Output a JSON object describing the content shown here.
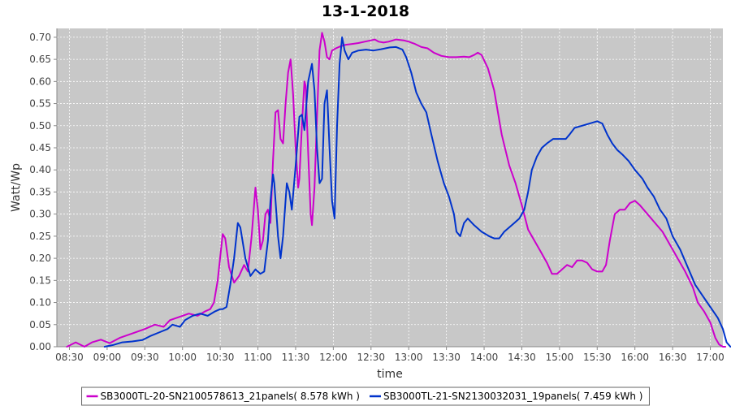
{
  "chart_data": {
    "type": "line",
    "title": "13-1-2018",
    "xlabel": "time",
    "ylabel": "Watt/Wp",
    "xlim": [
      "08:20",
      "17:10"
    ],
    "ylim": [
      0,
      0.72
    ],
    "x_ticks": [
      "08:30",
      "09:00",
      "09:30",
      "10:00",
      "10:30",
      "11:00",
      "11:30",
      "12:00",
      "12:30",
      "13:00",
      "13:30",
      "14:00",
      "14:30",
      "15:00",
      "15:30",
      "16:00",
      "16:30",
      "17:00"
    ],
    "y_ticks": [
      "0.00",
      "0.05",
      "0.10",
      "0.15",
      "0.20",
      "0.25",
      "0.30",
      "0.35",
      "0.40",
      "0.45",
      "0.50",
      "0.55",
      "0.60",
      "0.65",
      "0.70"
    ],
    "grid": true,
    "legend_position": "bottom",
    "background_color": "#c8c8c8",
    "series": [
      {
        "name": "SB3000TL-20-SN2100578613_21panels( 8.578 kWh )",
        "color": "#cc00cc",
        "points": [
          [
            "08:28",
            0.0
          ],
          [
            "08:35",
            0.01
          ],
          [
            "08:42",
            0.0
          ],
          [
            "08:48",
            0.01
          ],
          [
            "08:55",
            0.016
          ],
          [
            "09:02",
            0.008
          ],
          [
            "09:10",
            0.02
          ],
          [
            "09:20",
            0.03
          ],
          [
            "09:30",
            0.04
          ],
          [
            "09:38",
            0.05
          ],
          [
            "09:45",
            0.045
          ],
          [
            "09:50",
            0.06
          ],
          [
            "10:00",
            0.07
          ],
          [
            "10:05",
            0.075
          ],
          [
            "10:12",
            0.07
          ],
          [
            "10:18",
            0.08
          ],
          [
            "10:22",
            0.085
          ],
          [
            "10:25",
            0.1
          ],
          [
            "10:28",
            0.15
          ],
          [
            "10:32",
            0.255
          ],
          [
            "10:34",
            0.245
          ],
          [
            "10:37",
            0.18
          ],
          [
            "10:41",
            0.145
          ],
          [
            "10:45",
            0.16
          ],
          [
            "10:49",
            0.185
          ],
          [
            "10:52",
            0.17
          ],
          [
            "10:55",
            0.25
          ],
          [
            "10:58",
            0.36
          ],
          [
            "11:00",
            0.31
          ],
          [
            "11:02",
            0.22
          ],
          [
            "11:04",
            0.24
          ],
          [
            "11:06",
            0.3
          ],
          [
            "11:08",
            0.31
          ],
          [
            "11:10",
            0.28
          ],
          [
            "11:12",
            0.42
          ],
          [
            "11:14",
            0.53
          ],
          [
            "11:16",
            0.535
          ],
          [
            "11:18",
            0.47
          ],
          [
            "11:20",
            0.46
          ],
          [
            "11:22",
            0.55
          ],
          [
            "11:24",
            0.62
          ],
          [
            "11:26",
            0.65
          ],
          [
            "11:28",
            0.57
          ],
          [
            "11:30",
            0.45
          ],
          [
            "11:32",
            0.36
          ],
          [
            "11:33",
            0.38
          ],
          [
            "11:35",
            0.5
          ],
          [
            "11:37",
            0.6
          ],
          [
            "11:38",
            0.59
          ],
          [
            "11:40",
            0.44
          ],
          [
            "11:42",
            0.3
          ],
          [
            "11:43",
            0.275
          ],
          [
            "11:45",
            0.36
          ],
          [
            "11:47",
            0.52
          ],
          [
            "11:49",
            0.67
          ],
          [
            "11:51",
            0.71
          ],
          [
            "11:53",
            0.69
          ],
          [
            "11:55",
            0.655
          ],
          [
            "11:57",
            0.65
          ],
          [
            "11:59",
            0.67
          ],
          [
            "12:02",
            0.675
          ],
          [
            "12:06",
            0.68
          ],
          [
            "12:10",
            0.683
          ],
          [
            "12:15",
            0.685
          ],
          [
            "12:20",
            0.687
          ],
          [
            "12:25",
            0.69
          ],
          [
            "12:30",
            0.693
          ],
          [
            "12:33",
            0.695
          ],
          [
            "12:36",
            0.69
          ],
          [
            "12:40",
            0.688
          ],
          [
            "12:44",
            0.69
          ],
          [
            "12:50",
            0.695
          ],
          [
            "12:56",
            0.693
          ],
          [
            "13:00",
            0.69
          ],
          [
            "13:05",
            0.685
          ],
          [
            "13:10",
            0.678
          ],
          [
            "13:15",
            0.675
          ],
          [
            "13:20",
            0.665
          ],
          [
            "13:26",
            0.658
          ],
          [
            "13:32",
            0.655
          ],
          [
            "13:38",
            0.655
          ],
          [
            "13:44",
            0.656
          ],
          [
            "13:48",
            0.655
          ],
          [
            "13:52",
            0.66
          ],
          [
            "13:55",
            0.665
          ],
          [
            "13:58",
            0.66
          ],
          [
            "14:03",
            0.63
          ],
          [
            "14:08",
            0.58
          ],
          [
            "14:14",
            0.48
          ],
          [
            "14:20",
            0.41
          ],
          [
            "14:25",
            0.37
          ],
          [
            "14:30",
            0.32
          ],
          [
            "14:35",
            0.265
          ],
          [
            "14:40",
            0.24
          ],
          [
            "14:45",
            0.215
          ],
          [
            "14:50",
            0.19
          ],
          [
            "14:54",
            0.165
          ],
          [
            "14:58",
            0.165
          ],
          [
            "15:02",
            0.175
          ],
          [
            "15:06",
            0.185
          ],
          [
            "15:10",
            0.18
          ],
          [
            "15:14",
            0.195
          ],
          [
            "15:18",
            0.195
          ],
          [
            "15:22",
            0.19
          ],
          [
            "15:26",
            0.175
          ],
          [
            "15:30",
            0.17
          ],
          [
            "15:34",
            0.17
          ],
          [
            "15:37",
            0.185
          ],
          [
            "15:40",
            0.24
          ],
          [
            "15:44",
            0.3
          ],
          [
            "15:48",
            0.31
          ],
          [
            "15:52",
            0.31
          ],
          [
            "15:56",
            0.325
          ],
          [
            "16:00",
            0.33
          ],
          [
            "16:04",
            0.32
          ],
          [
            "16:10",
            0.3
          ],
          [
            "16:16",
            0.28
          ],
          [
            "16:22",
            0.26
          ],
          [
            "16:28",
            0.23
          ],
          [
            "16:34",
            0.2
          ],
          [
            "16:40",
            0.17
          ],
          [
            "16:46",
            0.135
          ],
          [
            "16:50",
            0.1
          ],
          [
            "16:55",
            0.08
          ],
          [
            "17:00",
            0.055
          ],
          [
            "17:04",
            0.02
          ],
          [
            "17:07",
            0.005
          ],
          [
            "17:10",
            0.0
          ],
          [
            "17:12",
            0.0
          ]
        ]
      },
      {
        "name": "SB3000TL-21-SN2130032031_19panels( 7.459 kWh )",
        "color": "#0033cc",
        "points": [
          [
            "08:58",
            0.0
          ],
          [
            "09:05",
            0.004
          ],
          [
            "09:12",
            0.01
          ],
          [
            "09:20",
            0.012
          ],
          [
            "09:28",
            0.015
          ],
          [
            "09:35",
            0.025
          ],
          [
            "09:42",
            0.033
          ],
          [
            "09:48",
            0.04
          ],
          [
            "09:52",
            0.05
          ],
          [
            "09:58",
            0.045
          ],
          [
            "10:02",
            0.06
          ],
          [
            "10:08",
            0.07
          ],
          [
            "10:14",
            0.075
          ],
          [
            "10:20",
            0.07
          ],
          [
            "10:26",
            0.08
          ],
          [
            "10:30",
            0.085
          ],
          [
            "10:32",
            0.085
          ],
          [
            "10:35",
            0.09
          ],
          [
            "10:38",
            0.14
          ],
          [
            "10:41",
            0.2
          ],
          [
            "10:44",
            0.28
          ],
          [
            "10:46",
            0.27
          ],
          [
            "10:50",
            0.2
          ],
          [
            "10:54",
            0.16
          ],
          [
            "10:58",
            0.175
          ],
          [
            "11:02",
            0.165
          ],
          [
            "11:05",
            0.17
          ],
          [
            "11:08",
            0.24
          ],
          [
            "11:10",
            0.33
          ],
          [
            "11:12",
            0.39
          ],
          [
            "11:13",
            0.37
          ],
          [
            "11:16",
            0.25
          ],
          [
            "11:18",
            0.2
          ],
          [
            "11:20",
            0.25
          ],
          [
            "11:23",
            0.37
          ],
          [
            "11:25",
            0.35
          ],
          [
            "11:27",
            0.31
          ],
          [
            "11:30",
            0.41
          ],
          [
            "11:33",
            0.52
          ],
          [
            "11:35",
            0.525
          ],
          [
            "11:37",
            0.49
          ],
          [
            "11:40",
            0.6
          ],
          [
            "11:43",
            0.64
          ],
          [
            "11:45",
            0.58
          ],
          [
            "11:47",
            0.45
          ],
          [
            "11:49",
            0.37
          ],
          [
            "11:51",
            0.38
          ],
          [
            "11:53",
            0.55
          ],
          [
            "11:55",
            0.58
          ],
          [
            "11:57",
            0.45
          ],
          [
            "11:59",
            0.33
          ],
          [
            "12:01",
            0.29
          ],
          [
            "12:03",
            0.5
          ],
          [
            "12:05",
            0.64
          ],
          [
            "12:07",
            0.7
          ],
          [
            "12:09",
            0.67
          ],
          [
            "12:12",
            0.65
          ],
          [
            "12:15",
            0.665
          ],
          [
            "12:20",
            0.67
          ],
          [
            "12:26",
            0.672
          ],
          [
            "12:32",
            0.67
          ],
          [
            "12:38",
            0.673
          ],
          [
            "12:45",
            0.677
          ],
          [
            "12:50",
            0.678
          ],
          [
            "12:55",
            0.672
          ],
          [
            "12:58",
            0.655
          ],
          [
            "13:02",
            0.62
          ],
          [
            "13:06",
            0.575
          ],
          [
            "13:10",
            0.55
          ],
          [
            "13:14",
            0.53
          ],
          [
            "13:18",
            0.48
          ],
          [
            "13:23",
            0.42
          ],
          [
            "13:28",
            0.37
          ],
          [
            "13:32",
            0.34
          ],
          [
            "13:36",
            0.3
          ],
          [
            "13:38",
            0.26
          ],
          [
            "13:41",
            0.25
          ],
          [
            "13:44",
            0.28
          ],
          [
            "13:47",
            0.29
          ],
          [
            "13:52",
            0.275
          ],
          [
            "13:58",
            0.26
          ],
          [
            "14:04",
            0.25
          ],
          [
            "14:08",
            0.245
          ],
          [
            "14:12",
            0.245
          ],
          [
            "14:16",
            0.26
          ],
          [
            "14:20",
            0.27
          ],
          [
            "14:24",
            0.28
          ],
          [
            "14:28",
            0.29
          ],
          [
            "14:32",
            0.31
          ],
          [
            "14:35",
            0.35
          ],
          [
            "14:38",
            0.4
          ],
          [
            "14:42",
            0.43
          ],
          [
            "14:46",
            0.45
          ],
          [
            "14:50",
            0.46
          ],
          [
            "14:55",
            0.47
          ],
          [
            "15:00",
            0.47
          ],
          [
            "15:05",
            0.47
          ],
          [
            "15:08",
            0.48
          ],
          [
            "15:12",
            0.495
          ],
          [
            "15:18",
            0.5
          ],
          [
            "15:24",
            0.505
          ],
          [
            "15:30",
            0.51
          ],
          [
            "15:34",
            0.505
          ],
          [
            "15:38",
            0.48
          ],
          [
            "15:42",
            0.46
          ],
          [
            "15:46",
            0.445
          ],
          [
            "15:50",
            0.435
          ],
          [
            "15:55",
            0.42
          ],
          [
            "16:00",
            0.4
          ],
          [
            "16:06",
            0.38
          ],
          [
            "16:10",
            0.36
          ],
          [
            "16:15",
            0.34
          ],
          [
            "16:20",
            0.31
          ],
          [
            "16:25",
            0.29
          ],
          [
            "16:30",
            0.25
          ],
          [
            "16:36",
            0.22
          ],
          [
            "16:42",
            0.18
          ],
          [
            "16:48",
            0.14
          ],
          [
            "16:54",
            0.115
          ],
          [
            "17:00",
            0.09
          ],
          [
            "17:06",
            0.065
          ],
          [
            "17:10",
            0.04
          ],
          [
            "17:13",
            0.01
          ],
          [
            "17:16",
            0.0
          ]
        ]
      }
    ]
  }
}
